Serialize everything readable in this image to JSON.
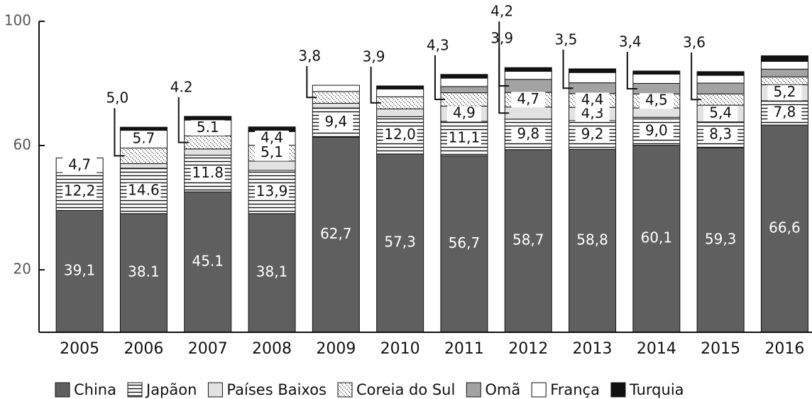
{
  "chart_data": {
    "type": "stacked_bar",
    "categories": [
      "2005",
      "2006",
      "2007",
      "2008",
      "2009",
      "2010",
      "2011",
      "2012",
      "2013",
      "2014",
      "2015",
      "2016"
    ],
    "ylim": [
      0,
      100
    ],
    "yticks": [
      20,
      60,
      100
    ],
    "series": [
      {
        "name": "China",
        "color": "#5f5f5f",
        "pattern": "solid",
        "values": [
          39.1,
          38.1,
          45.1,
          38.1,
          62.7,
          57.3,
          56.7,
          58.7,
          58.8,
          60.1,
          59.3,
          66.6
        ],
        "value_labels": [
          "39,1",
          "38.1",
          "45.1",
          "38,1",
          "62,7",
          "57,3",
          "56,7",
          "58,7",
          "58,8",
          "60,1",
          "59,3",
          "66,6"
        ],
        "callouts": [
          false,
          false,
          false,
          false,
          false,
          false,
          false,
          false,
          false,
          false,
          false,
          false
        ]
      },
      {
        "name": "Japãon",
        "color": "#ffffff",
        "pattern": "hlines",
        "values": [
          12.2,
          14.6,
          11.8,
          13.9,
          9.4,
          12.0,
          11.1,
          9.8,
          9.2,
          9.0,
          8.3,
          7.8
        ],
        "value_labels": [
          "12,2",
          "14.6",
          "11.8",
          "13,9",
          "9,4",
          "12,0",
          "11,1",
          "9,8",
          "9,2",
          "9,0",
          "8,3",
          "7,8"
        ],
        "callouts": [
          false,
          false,
          false,
          false,
          false,
          false,
          false,
          false,
          false,
          false,
          false,
          false
        ]
      },
      {
        "name": "Países Baixos",
        "color": "#e2e2e2",
        "pattern": "solid",
        "values": [
          0,
          1.5,
          2,
          3,
          1.5,
          2.5,
          4.9,
          3.9,
          4.3,
          3,
          5.4,
          5.2
        ],
        "value_labels": [
          null,
          null,
          null,
          null,
          null,
          null,
          "4,9",
          "3,9",
          "4,3",
          null,
          "5,4",
          "5,2"
        ],
        "callouts": [
          false,
          false,
          false,
          false,
          false,
          false,
          false,
          true,
          false,
          false,
          false,
          false
        ]
      },
      {
        "name": "Coreia do Sul",
        "color": "#ffffff",
        "pattern": "dots",
        "values": [
          0,
          5.0,
          4.2,
          5.1,
          3.8,
          3.9,
          4.3,
          4.7,
          4.4,
          4.5,
          3.6,
          2.5
        ],
        "value_labels": [
          null,
          "5,0",
          "4.2",
          "5,1",
          "3,8",
          "3,9",
          "4,3",
          "4,7",
          "4,4",
          "4,5",
          "3,6",
          null
        ],
        "callouts": [
          false,
          true,
          true,
          false,
          true,
          true,
          true,
          false,
          false,
          false,
          true,
          false
        ]
      },
      {
        "name": "Omã",
        "color": "#a3a3a3",
        "pattern": "solid",
        "values": [
          0,
          0,
          0,
          0,
          0,
          0,
          2,
          4.2,
          3.5,
          3.4,
          3.5,
          2.5
        ],
        "value_labels": [
          null,
          null,
          null,
          null,
          null,
          null,
          null,
          "4,2",
          "3,5",
          "3,4",
          null,
          null
        ],
        "callouts": [
          false,
          false,
          false,
          false,
          false,
          false,
          false,
          true,
          true,
          true,
          false,
          false
        ]
      },
      {
        "name": "França",
        "color": "#ffffff",
        "pattern": "solid",
        "values": [
          4.7,
          5.7,
          5.1,
          4.4,
          2,
          2.5,
          2.7,
          2.6,
          3.3,
          3,
          2.5,
          2.5
        ],
        "value_labels": [
          "4,7",
          "5.7",
          "5.1",
          "4,4",
          null,
          null,
          null,
          null,
          null,
          null,
          null,
          null
        ],
        "callouts": [
          false,
          false,
          false,
          false,
          false,
          false,
          false,
          false,
          false,
          false,
          false,
          false
        ]
      },
      {
        "name": "Turquia",
        "color": "#111111",
        "pattern": "solid",
        "values": [
          0,
          1,
          1.2,
          1.5,
          0,
          1,
          1.2,
          1.2,
          1.2,
          1,
          1.2,
          1.8
        ],
        "value_labels": [
          null,
          null,
          null,
          null,
          null,
          null,
          null,
          null,
          null,
          null,
          null,
          null
        ],
        "callouts": [
          false,
          false,
          false,
          false,
          false,
          false,
          false,
          false,
          false,
          false,
          false,
          false
        ]
      }
    ]
  }
}
